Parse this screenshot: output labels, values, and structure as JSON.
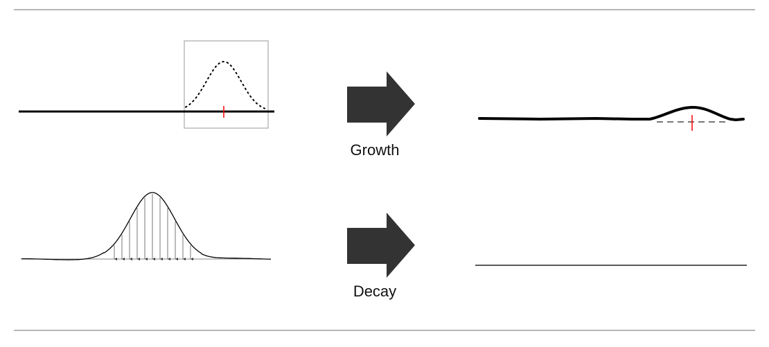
{
  "labels": {
    "growth": "Growth",
    "decay": "Decay"
  },
  "colors": {
    "rule": "#8a8a8a",
    "stroke": "#000000",
    "arrow": "#333333",
    "marker": "#ff0000",
    "box": "#b0b0b0",
    "dashed": "#777777"
  }
}
